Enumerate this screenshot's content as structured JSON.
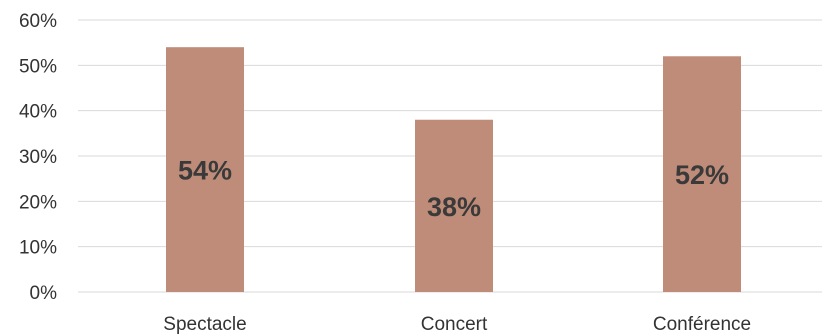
{
  "chart_data": {
    "type": "bar",
    "categories": [
      "Spectacle",
      "Concert",
      "Conférence"
    ],
    "values": [
      54,
      38,
      52
    ],
    "data_labels": [
      "54%",
      "38%",
      "52%"
    ],
    "y_ticks": [
      "0%",
      "10%",
      "20%",
      "30%",
      "40%",
      "50%",
      "60%"
    ],
    "ylim": [
      0,
      60
    ],
    "title": "",
    "xlabel": "",
    "ylabel": "",
    "grid": true,
    "legend": "none",
    "bar_color": "#be8c78",
    "grid_color": "#d9d9d9"
  }
}
